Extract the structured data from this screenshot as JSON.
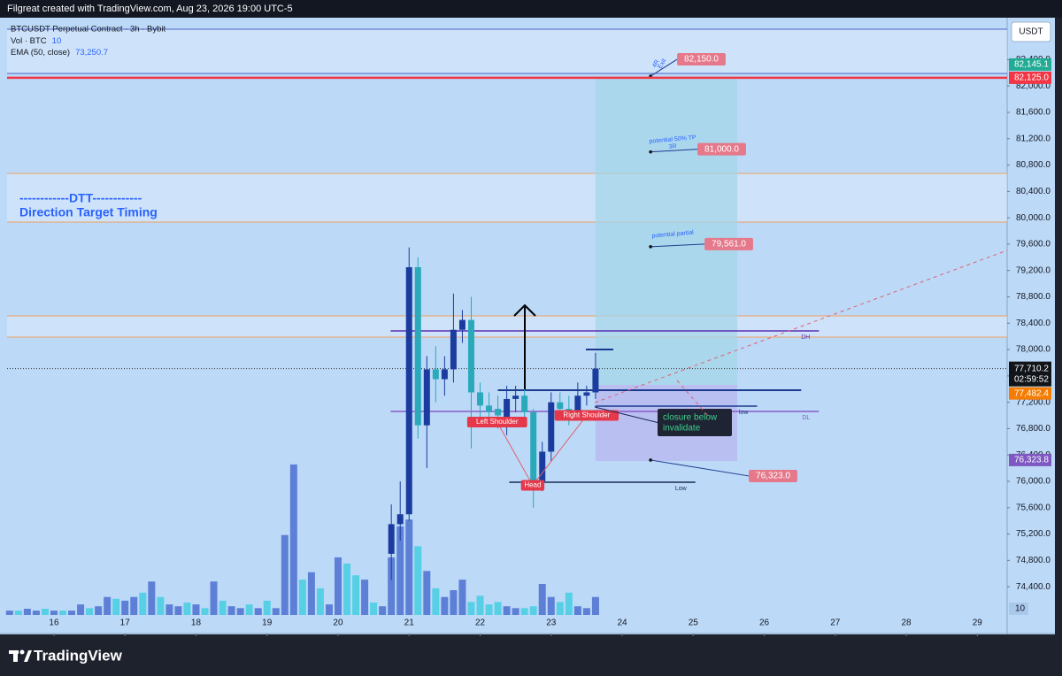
{
  "header": {
    "credit": "Filgreat created with TradingView.com, Aug 23, 2026 19:00 UTC-5"
  },
  "footer": {
    "brand": "TradingView"
  },
  "chart_data": {
    "type": "candlestick",
    "title": "BTCUSDT Perpetual Contract · 3h · Bybit",
    "currency": "USDT",
    "indicators": [
      {
        "name": "Vol · BTC",
        "value": 10
      },
      {
        "name": "EMA (50, close)",
        "value": 73250.7,
        "value_label": "73,250.7"
      }
    ],
    "x": [
      20.75,
      20.875,
      21,
      21.125,
      21.25,
      21.375,
      21.5,
      21.625,
      21.75,
      21.875,
      22,
      22.125,
      22.25,
      22.375,
      22.5,
      22.625,
      22.75,
      22.875,
      23,
      23.125,
      23.25,
      23.375,
      23.5,
      23.625
    ],
    "open": [
      74900,
      75350,
      75500,
      79250,
      76850,
      77700,
      77550,
      77700,
      78300,
      78450,
      77350,
      77150,
      77100,
      76950,
      77250,
      77300,
      77050,
      76000,
      76450,
      77200,
      77100,
      77050,
      77300,
      77350
    ],
    "high": [
      75650,
      76000,
      79550,
      79400,
      77900,
      78050,
      77900,
      78850,
      78600,
      78800,
      77500,
      77350,
      77300,
      77450,
      77450,
      77450,
      77100,
      76600,
      77350,
      77350,
      77300,
      77500,
      77450,
      77950
    ],
    "low": [
      74500,
      75100,
      75400,
      76650,
      76200,
      77200,
      77300,
      77500,
      78100,
      76500,
      76950,
      76900,
      76800,
      76700,
      77050,
      76900,
      75600,
      75850,
      76300,
      77000,
      76850,
      76950,
      77150,
      77250
    ],
    "close": [
      75350,
      75500,
      79250,
      76850,
      77700,
      77550,
      77700,
      78300,
      78450,
      77350,
      77150,
      77050,
      77000,
      77250,
      77300,
      77050,
      76000,
      76450,
      77200,
      77100,
      77050,
      77300,
      77350,
      77710.2
    ],
    "up_color": "#1b3c9e",
    "down_color": "#2aa9bb",
    "volume": {
      "x": [
        15.375,
        15.5,
        15.625,
        15.75,
        15.875,
        16,
        16.125,
        16.25,
        16.375,
        16.5,
        16.625,
        16.75,
        16.875,
        17,
        17.125,
        17.25,
        17.375,
        17.5,
        17.625,
        17.75,
        17.875,
        18,
        18.125,
        18.25,
        18.375,
        18.5,
        18.625,
        18.75,
        18.875,
        19,
        19.125,
        19.25,
        19.375,
        19.5,
        19.625,
        19.75,
        19.875,
        20,
        20.125,
        20.25,
        20.375,
        20.5,
        20.625,
        20.75,
        20.875,
        21,
        21.125,
        21.25,
        21.375,
        21.5,
        21.625,
        21.75,
        21.875,
        22,
        22.125,
        22.25,
        22.375,
        22.5,
        22.625,
        22.75,
        22.875,
        23,
        23.125,
        23.25,
        23.375,
        23.5,
        23.625
      ],
      "values": [
        7,
        7,
        10,
        7,
        10,
        7,
        7,
        7,
        17,
        11,
        14,
        29,
        26,
        23,
        29,
        36,
        54,
        29,
        17,
        14,
        20,
        17,
        11,
        54,
        23,
        14,
        11,
        17,
        11,
        23,
        11,
        129,
        243,
        57,
        69,
        43,
        17,
        93,
        83,
        64,
        57,
        20,
        14,
        93,
        143,
        154,
        111,
        71,
        43,
        29,
        40,
        57,
        21,
        31,
        17,
        21,
        14,
        11,
        11,
        14,
        50,
        29,
        21,
        36,
        14,
        11,
        29
      ],
      "up": [
        1,
        0,
        1,
        1,
        0,
        1,
        0,
        1,
        1,
        0,
        1,
        1,
        0,
        1,
        1,
        0,
        1,
        0,
        1,
        1,
        0,
        1,
        0,
        1,
        0,
        1,
        1,
        0,
        1,
        0,
        1,
        1,
        1,
        0,
        1,
        0,
        1,
        1,
        0,
        0,
        1,
        0,
        1,
        1,
        1,
        1,
        0,
        1,
        0,
        1,
        1,
        1,
        0,
        0,
        0,
        0,
        1,
        1,
        0,
        0,
        1,
        1,
        0,
        0,
        1,
        1,
        1
      ],
      "up_color": "#5d80d6",
      "down_color": "#57d0e6",
      "ylim": [
        0,
        250
      ],
      "yticks": [
        10
      ]
    },
    "xlim": [
      15.34,
      29.42
    ],
    "xticks": [
      16,
      17,
      18,
      19,
      20,
      21,
      22,
      23,
      24,
      25,
      26,
      27,
      28,
      29
    ],
    "ylim": [
      73690,
      83010
    ],
    "yticks": [
      {
        "value": 74400,
        "label": "74,400.0"
      },
      {
        "value": 74800,
        "label": "74,800.0"
      },
      {
        "value": 75200,
        "label": "75,200.0"
      },
      {
        "value": 75600,
        "label": "75,600.0"
      },
      {
        "value": 76000,
        "label": "76,000.0"
      },
      {
        "value": 76400,
        "label": "76,400.0"
      },
      {
        "value": 76800,
        "label": "76,800.0"
      },
      {
        "value": 77200,
        "label": "77,200.0"
      },
      {
        "value": 77600,
        "label": "77,600.0"
      },
      {
        "value": 78000,
        "label": "78,000.0"
      },
      {
        "value": 78400,
        "label": "78,400.0"
      },
      {
        "value": 78800,
        "label": "78,800.0"
      },
      {
        "value": 79200,
        "label": "79,200.0"
      },
      {
        "value": 79600,
        "label": "79,600.0"
      },
      {
        "value": 80000,
        "label": "80,000.0"
      },
      {
        "value": 80400,
        "label": "80,400.0"
      },
      {
        "value": 80800,
        "label": "80,800.0"
      },
      {
        "value": 81200,
        "label": "81,200.0"
      },
      {
        "value": 81600,
        "label": "81,600.0"
      },
      {
        "value": 82000,
        "label": "82,000.0"
      },
      {
        "value": 82400,
        "label": "82,400.0"
      }
    ],
    "grid": false,
    "last_price": {
      "value": 77710.2,
      "label": "77,710.2",
      "countdown": "02:59:52"
    },
    "price_tags": [
      {
        "value": 82125,
        "label": "82,125.0",
        "color": "#f23645",
        "hline": true
      },
      {
        "value": 82145.1,
        "label": "82,145.1",
        "color": "#22ab94",
        "hline": false
      },
      {
        "value": 77482.4,
        "label": "77,482.4",
        "color": "#f57c00",
        "hline": false
      },
      {
        "value": 76323.8,
        "label": "76,323.8",
        "color": "#7e57c2",
        "hline": false
      }
    ],
    "zones": [
      {
        "from": 82191,
        "to": 82862,
        "color": "#4a62c8"
      },
      {
        "from": 79935,
        "to": 80673,
        "color": "#f0a060"
      },
      {
        "from": 78189,
        "to": 78511,
        "color": "#f0a060"
      }
    ],
    "position": {
      "x": [
        23.625,
        25.62
      ],
      "target": 82125,
      "entry": 77464,
      "stop": 76309
    },
    "levels": [
      {
        "name": "DH",
        "value": 78283,
        "x": [
          20.74,
          26.77
        ],
        "color": "#5b2fb5"
      },
      {
        "name": "DL",
        "value": 77061,
        "x": [
          20.74,
          26.77
        ],
        "color": "#8a5cc8"
      },
      {
        "name": "low",
        "value": 77141,
        "x": [
          23.62,
          25.9
        ],
        "color": "#1a3a8c"
      },
      {
        "name": "Low",
        "value": 75986,
        "x": [
          22.41,
          25.03
        ],
        "color": "#1a2a5c"
      }
    ],
    "plain_levels": [
      {
        "value": 77383,
        "x": [
          22.25,
          26.52
        ],
        "color": "#1a3a8c"
      }
    ],
    "annotations": [
      {
        "lines": [
          "4R",
          "Exit"
        ],
        "x": 24.4,
        "value": 82150,
        "label": "82,150.0"
      },
      {
        "lines": [
          "potential 50% TP",
          "3R"
        ],
        "x": 24.4,
        "value": 81000,
        "label": "81,000.0"
      },
      {
        "lines": [
          "potential partial"
        ],
        "x": 24.4,
        "value": 79561,
        "label": "79,561.0"
      },
      {
        "lines": [],
        "x": 24.4,
        "value": 76323,
        "label": "76,323.0"
      }
    ],
    "patterns": [
      {
        "text": "Left Shoulder",
        "x": 22.24,
        "value": 76900
      },
      {
        "text": "Head",
        "x": 22.74,
        "value": 75940
      },
      {
        "text": "Right Shoulder",
        "x": 23.5,
        "value": 77000
      }
    ],
    "note": [
      "closure below",
      "invalidate"
    ],
    "banner": [
      "------------DTT------------",
      "Direction Target Timing"
    ]
  }
}
